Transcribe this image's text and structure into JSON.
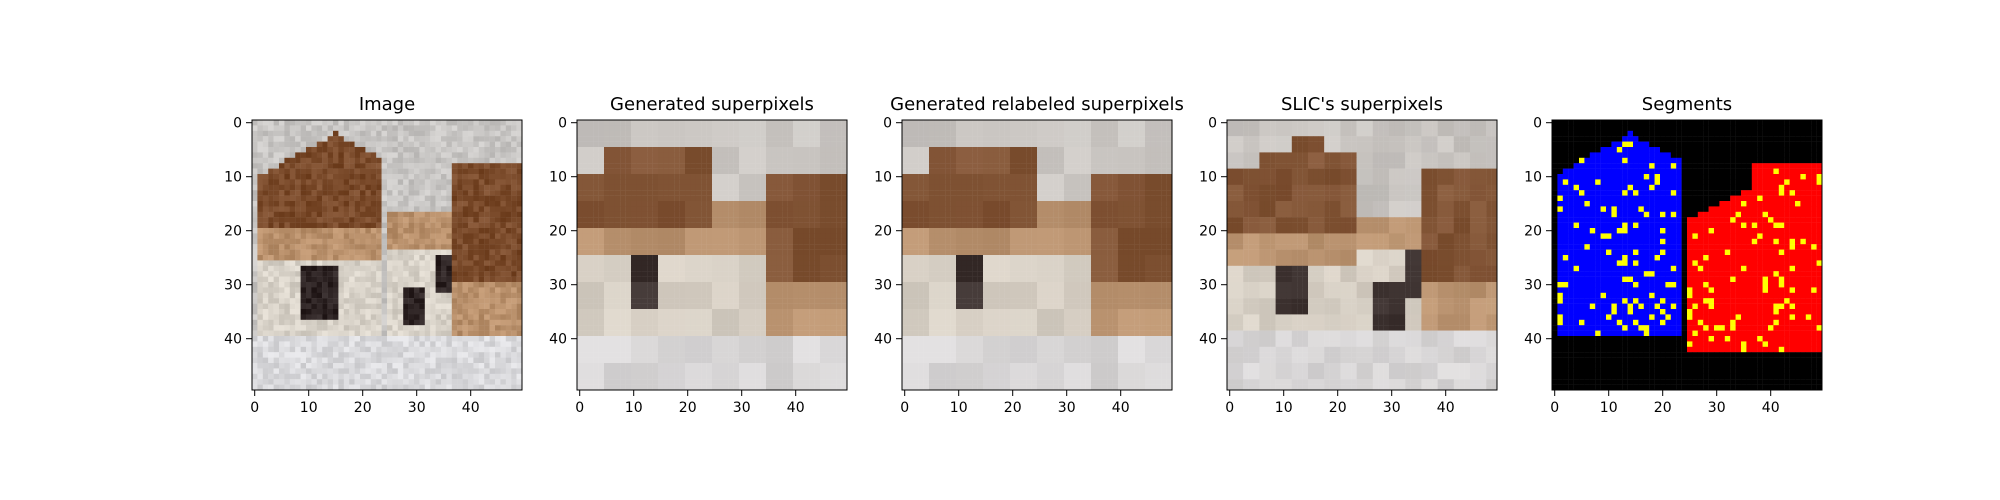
{
  "figure": {
    "panels": [
      {
        "id": "image",
        "title": "Image",
        "style": "photo"
      },
      {
        "id": "generated",
        "title": "Generated superpixels",
        "style": "superpixel"
      },
      {
        "id": "relabeled",
        "title": "Generated relabeled superpixels",
        "style": "superpixel"
      },
      {
        "id": "slic",
        "title": "SLIC's superpixels",
        "style": "slic"
      },
      {
        "id": "segments",
        "title": "Segments",
        "style": "segments"
      }
    ],
    "x_ticks": [
      "0",
      "10",
      "20",
      "30",
      "40"
    ],
    "y_ticks": [
      "0",
      "10",
      "20",
      "30",
      "40"
    ],
    "grid_size": 50,
    "colors": {
      "background_wall": "#c8c6c4",
      "floor": "#d9d9dc",
      "dog_brown": "#7a4a2a",
      "dog_tan": "#b9906b",
      "dog_white": "#d8d2c8",
      "dog_face_dark": "#2d2323",
      "segment_blue": "#0000ff",
      "segment_red": "#ff0000",
      "segment_border": "#ffff00",
      "segment_background": "#000000"
    }
  }
}
